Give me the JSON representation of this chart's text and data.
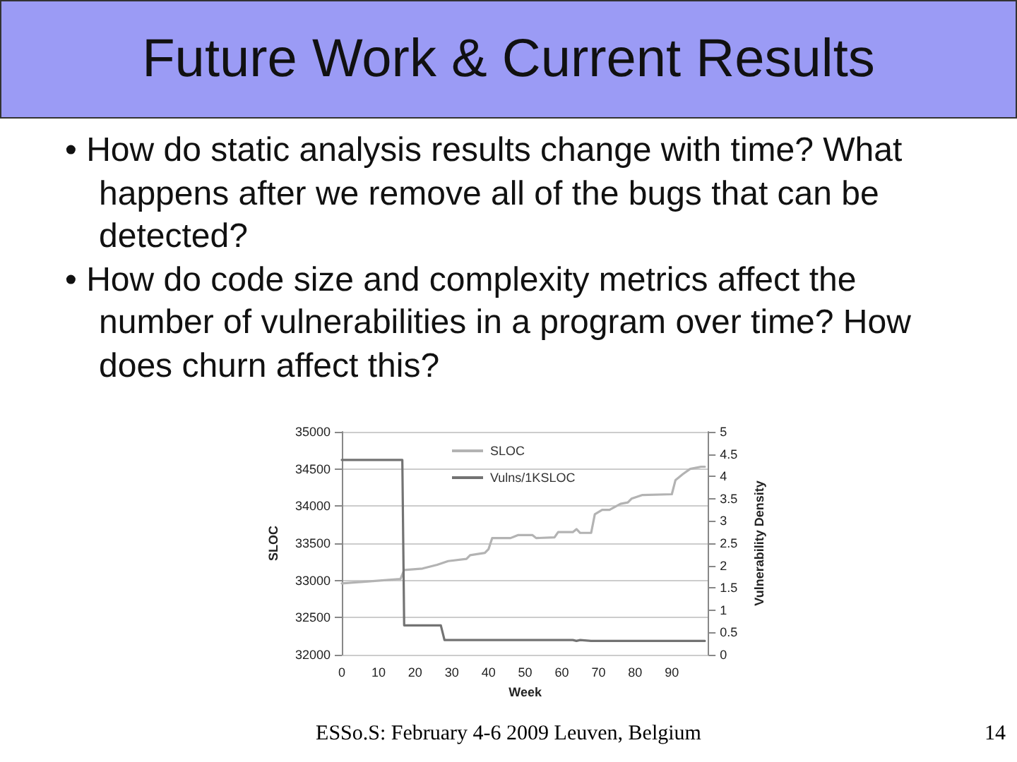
{
  "chart_data": {
    "type": "line",
    "title": "Future Work & Current Results",
    "annotations": [
      "• How do static analysis results change with time? What happens after we remove all of the bugs that can be detected?",
      "• How do code size and complexity metrics affect the number of vulnerabilities in a program over time? How does churn affect this?",
      "ESSo.S: February 4-6 2009 Leuven, Belgium",
      "14"
    ],
    "xlabel": "Week",
    "ylabel": "SLOC",
    "y2label": "Vulnerability Density",
    "xlim": [
      0,
      100
    ],
    "xticks": [
      0,
      10,
      20,
      30,
      40,
      50,
      60,
      70,
      80,
      90
    ],
    "ylim": [
      32000,
      35000
    ],
    "yticks": [
      32000,
      32500,
      33000,
      33500,
      34000,
      34500,
      35000
    ],
    "y2lim": [
      0,
      5
    ],
    "y2ticks": [
      0,
      0.5,
      1,
      1.5,
      2,
      2.5,
      3,
      3.5,
      4,
      4.5,
      5
    ],
    "grid": "y",
    "legend": "top",
    "marker": "none",
    "series": [
      {
        "name": "SLOC",
        "color": "#b3b3b3",
        "x": [
          0,
          16,
          17,
          22,
          26,
          29,
          34,
          35,
          39,
          40,
          41,
          46,
          48,
          52,
          53,
          58,
          59,
          63,
          64,
          65,
          68,
          69,
          71,
          73,
          76,
          78,
          79,
          82,
          90,
          91,
          93,
          95,
          98,
          99
        ],
        "values": [
          32960,
          33020,
          33140,
          33160,
          33210,
          33260,
          33290,
          33340,
          33370,
          33420,
          33570,
          33570,
          33610,
          33610,
          33570,
          33580,
          33650,
          33650,
          33690,
          33640,
          33640,
          33890,
          33950,
          33950,
          34030,
          34050,
          34100,
          34150,
          34160,
          34350,
          34430,
          34500,
          34530,
          34530
        ]
      },
      {
        "name": "Vulns/1KSLOC",
        "color": "#737373",
        "axis": "y2",
        "x": [
          0,
          16.5,
          17,
          27,
          28,
          63,
          64,
          65,
          68,
          99
        ],
        "values": [
          4.37,
          4.37,
          0.66,
          0.66,
          0.33,
          0.33,
          0.31,
          0.33,
          0.31,
          0.31
        ]
      }
    ]
  }
}
